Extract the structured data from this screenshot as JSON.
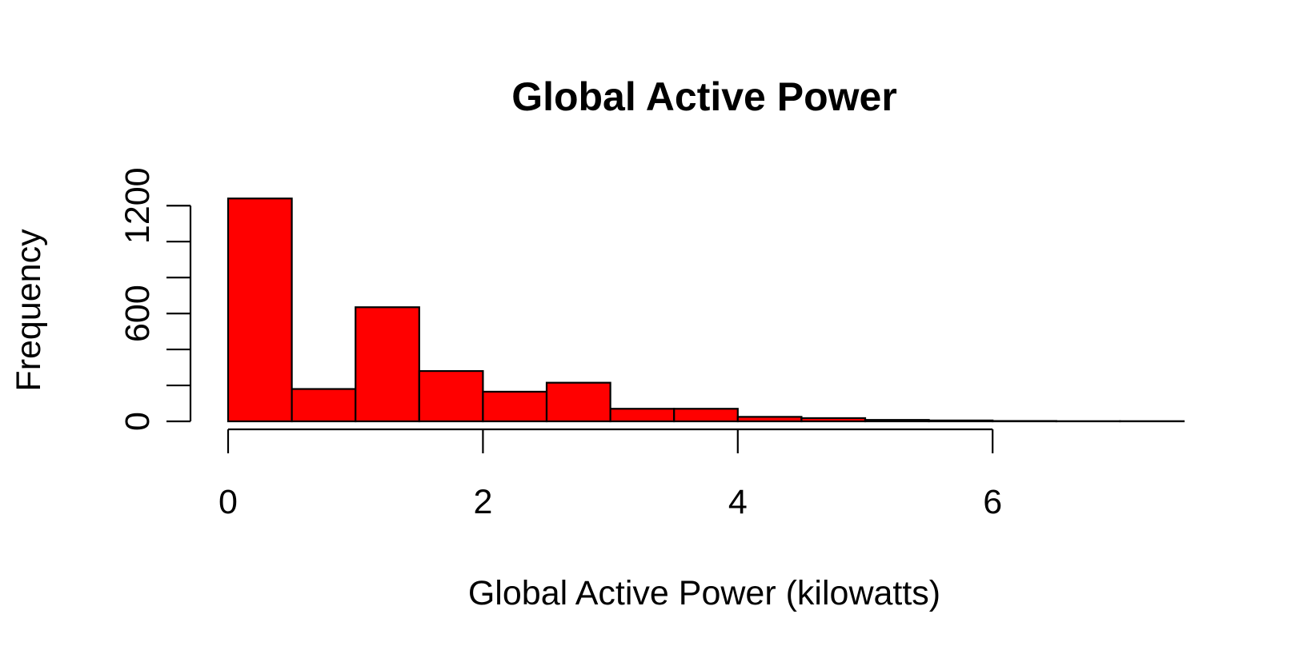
{
  "chart_data": {
    "type": "bar",
    "title": "Global Active Power",
    "xlabel": "Global Active Power (kilowatts)",
    "ylabel": "Frequency",
    "bar_color": "#ff0000",
    "border_color": "#000000",
    "bin_width": 0.5,
    "bins": [
      {
        "x0": 0.0,
        "x1": 0.5,
        "count": 1240
      },
      {
        "x0": 0.5,
        "x1": 1.0,
        "count": 180
      },
      {
        "x0": 1.0,
        "x1": 1.5,
        "count": 635
      },
      {
        "x0": 1.5,
        "x1": 2.0,
        "count": 280
      },
      {
        "x0": 2.0,
        "x1": 2.5,
        "count": 165
      },
      {
        "x0": 2.5,
        "x1": 3.0,
        "count": 215
      },
      {
        "x0": 3.0,
        "x1": 3.5,
        "count": 70
      },
      {
        "x0": 3.5,
        "x1": 4.0,
        "count": 70
      },
      {
        "x0": 4.0,
        "x1": 4.5,
        "count": 25
      },
      {
        "x0": 4.5,
        "x1": 5.0,
        "count": 18
      },
      {
        "x0": 5.0,
        "x1": 5.5,
        "count": 8
      },
      {
        "x0": 5.5,
        "x1": 6.0,
        "count": 5
      },
      {
        "x0": 6.0,
        "x1": 6.5,
        "count": 2
      },
      {
        "x0": 6.5,
        "x1": 7.0,
        "count": 1
      },
      {
        "x0": 7.0,
        "x1": 7.5,
        "count": 1
      }
    ],
    "xlim": [
      0,
      7.5
    ],
    "ylim": [
      0,
      1200
    ],
    "x_ticks": [
      0,
      2,
      4,
      6
    ],
    "x_tick_labels": [
      "0",
      "2",
      "4",
      "6"
    ],
    "y_ticks": [
      0,
      200,
      400,
      600,
      800,
      1000,
      1200
    ],
    "y_tick_labels": [
      "0",
      "",
      "",
      "600",
      "",
      "",
      "1200"
    ],
    "grid": false,
    "legend": "none"
  }
}
